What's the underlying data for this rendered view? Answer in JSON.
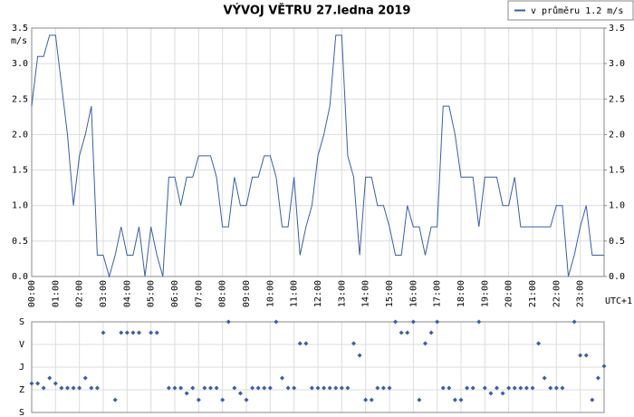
{
  "chart_data": [
    {
      "type": "line",
      "title": "VÝVOJ VĚTRU  27.ledna 2019",
      "y_label": "m/s",
      "x_annotation": "UTC+1",
      "grid": true,
      "legend": "top-right",
      "xlim": [
        0,
        24
      ],
      "xticks": [
        {
          "value": 0,
          "label": "00:00"
        },
        {
          "value": 1,
          "label": "01:00"
        },
        {
          "value": 2,
          "label": "02:00"
        },
        {
          "value": 3,
          "label": "03:00"
        },
        {
          "value": 4,
          "label": "04:00"
        },
        {
          "value": 5,
          "label": "05:00"
        },
        {
          "value": 6,
          "label": "06:00"
        },
        {
          "value": 7,
          "label": "07:00"
        },
        {
          "value": 8,
          "label": "08:00"
        },
        {
          "value": 9,
          "label": "09:00"
        },
        {
          "value": 10,
          "label": "10:00"
        },
        {
          "value": 11,
          "label": "11:00"
        },
        {
          "value": 12,
          "label": "12:00"
        },
        {
          "value": 13,
          "label": "13:00"
        },
        {
          "value": 14,
          "label": "14:00"
        },
        {
          "value": 15,
          "label": "15:00"
        },
        {
          "value": 16,
          "label": "16:00"
        },
        {
          "value": 17,
          "label": "17:00"
        },
        {
          "value": 18,
          "label": "18:00"
        },
        {
          "value": 19,
          "label": "19:00"
        },
        {
          "value": 20,
          "label": "20:00"
        },
        {
          "value": 21,
          "label": "21:00"
        },
        {
          "value": 22,
          "label": "22:00"
        },
        {
          "value": 23,
          "label": "23:00"
        }
      ],
      "ylim": [
        0,
        3.5
      ],
      "yticks": [
        {
          "value": 0,
          "label": "0.0"
        },
        {
          "value": 0.5,
          "label": "0.5"
        },
        {
          "value": 1,
          "label": "1.0"
        },
        {
          "value": 1.5,
          "label": "1.5"
        },
        {
          "value": 2,
          "label": "2.0"
        },
        {
          "value": 2.5,
          "label": "2.5"
        },
        {
          "value": 3,
          "label": "3.0"
        },
        {
          "value": 3.5,
          "label": "3.5"
        }
      ],
      "y2lim": [
        0,
        3.5
      ],
      "y2ticks": [
        {
          "value": 0,
          "label": "0.0"
        },
        {
          "value": 0.5,
          "label": "0.5"
        },
        {
          "value": 1,
          "label": "1.0"
        },
        {
          "value": 1.5,
          "label": "1.5"
        },
        {
          "value": 2,
          "label": "2.0"
        },
        {
          "value": 2.5,
          "label": "2.5"
        },
        {
          "value": 3,
          "label": "3.0"
        },
        {
          "value": 3.5,
          "label": "3.5"
        }
      ],
      "x": [
        0,
        0.25,
        0.5,
        0.75,
        1,
        1.25,
        1.5,
        1.75,
        2,
        2.25,
        2.5,
        2.75,
        3,
        3.25,
        3.5,
        3.75,
        4,
        4.25,
        4.5,
        4.75,
        5,
        5.25,
        5.5,
        5.75,
        6,
        6.25,
        6.5,
        6.75,
        7,
        7.25,
        7.5,
        7.75,
        8,
        8.25,
        8.5,
        8.75,
        9,
        9.25,
        9.5,
        9.75,
        10,
        10.25,
        10.5,
        10.75,
        11,
        11.25,
        11.5,
        11.75,
        12,
        12.25,
        12.5,
        12.75,
        13,
        13.25,
        13.5,
        13.75,
        14,
        14.25,
        14.5,
        14.75,
        15,
        15.25,
        15.5,
        15.75,
        16,
        16.25,
        16.5,
        16.75,
        17,
        17.25,
        17.5,
        17.75,
        18,
        18.25,
        18.5,
        18.75,
        19,
        19.25,
        19.5,
        19.75,
        20,
        20.25,
        20.5,
        20.75,
        21,
        21.25,
        21.5,
        21.75,
        22,
        22.25,
        22.5,
        22.75,
        23,
        23.25,
        23.5,
        23.75,
        24
      ],
      "series": [
        {
          "name": "v průměru 1.2 m/s",
          "color": "#3b5ea8",
          "values": [
            2.4,
            3.1,
            3.1,
            3.4,
            3.4,
            2.7,
            2.0,
            1.0,
            1.7,
            2.0,
            2.4,
            0.3,
            0.3,
            0.0,
            0.3,
            0.7,
            0.3,
            0.3,
            0.7,
            0.0,
            0.7,
            0.3,
            0.0,
            1.4,
            1.4,
            1.0,
            1.4,
            1.4,
            1.7,
            1.7,
            1.7,
            1.4,
            0.7,
            0.7,
            1.4,
            1.0,
            1.0,
            1.4,
            1.4,
            1.7,
            1.7,
            1.4,
            0.7,
            0.7,
            1.4,
            0.3,
            0.7,
            1.0,
            1.7,
            2.0,
            2.4,
            3.4,
            3.4,
            1.7,
            1.4,
            0.3,
            1.4,
            1.4,
            1.0,
            1.0,
            0.7,
            0.3,
            0.3,
            1.0,
            0.7,
            0.7,
            0.3,
            0.7,
            0.7,
            2.4,
            2.4,
            2.0,
            1.4,
            1.4,
            1.4,
            0.7,
            1.4,
            1.4,
            1.4,
            1.0,
            1.0,
            1.4,
            0.7,
            0.7,
            0.7,
            0.7,
            0.7,
            0.7,
            1.0,
            1.0,
            0.0,
            0.3,
            0.7,
            1.0,
            0.3,
            0.3,
            0.3
          ]
        }
      ]
    },
    {
      "type": "scatter",
      "grid": true,
      "xlim": [
        0,
        24
      ],
      "ylim": [
        360,
        0
      ],
      "yticks": [
        {
          "value": 0,
          "label": "S"
        },
        {
          "value": 90,
          "label": "V"
        },
        {
          "value": 180,
          "label": "J"
        },
        {
          "value": 270,
          "label": "Z"
        },
        {
          "value": 360,
          "label": "S"
        }
      ],
      "x": [
        0,
        0.25,
        0.5,
        0.75,
        1,
        1.25,
        1.5,
        1.75,
        2,
        2.25,
        2.5,
        2.75,
        3,
        3.25,
        3.5,
        3.75,
        4,
        4.25,
        4.5,
        4.75,
        5,
        5.25,
        5.5,
        5.75,
        6,
        6.25,
        6.5,
        6.75,
        7,
        7.25,
        7.5,
        7.75,
        8,
        8.25,
        8.5,
        8.75,
        9,
        9.25,
        9.5,
        9.75,
        10,
        10.25,
        10.5,
        10.75,
        11,
        11.25,
        11.5,
        11.75,
        12,
        12.25,
        12.5,
        12.75,
        13,
        13.25,
        13.5,
        13.75,
        14,
        14.25,
        14.5,
        14.75,
        15,
        15.25,
        15.5,
        15.75,
        16,
        16.25,
        16.5,
        16.75,
        17,
        17.25,
        17.5,
        17.75,
        18,
        18.25,
        18.5,
        18.75,
        19,
        19.25,
        19.5,
        19.75,
        20,
        20.25,
        20.5,
        20.75,
        21,
        21.25,
        21.5,
        21.75,
        22,
        22.25,
        22.5,
        22.75,
        23,
        23.25,
        23.5,
        23.75,
        24
      ],
      "color": "#3b5ea8",
      "values": [
        245,
        245,
        263,
        223,
        245,
        263,
        263,
        263,
        263,
        223,
        263,
        263,
        43,
        null,
        310,
        43,
        43,
        43,
        43,
        null,
        43,
        43,
        null,
        263,
        263,
        263,
        284,
        263,
        310,
        263,
        263,
        263,
        310,
        0,
        263,
        284,
        310,
        263,
        263,
        263,
        263,
        0,
        223,
        263,
        263,
        86,
        86,
        263,
        263,
        263,
        263,
        263,
        263,
        263,
        86,
        133,
        310,
        310,
        263,
        263,
        263,
        0,
        43,
        43,
        0,
        310,
        86,
        43,
        0,
        263,
        263,
        310,
        310,
        263,
        263,
        0,
        263,
        284,
        263,
        284,
        263,
        263,
        263,
        263,
        263,
        86,
        223,
        263,
        263,
        263,
        null,
        0,
        133,
        133,
        310,
        223,
        176
      ]
    }
  ]
}
